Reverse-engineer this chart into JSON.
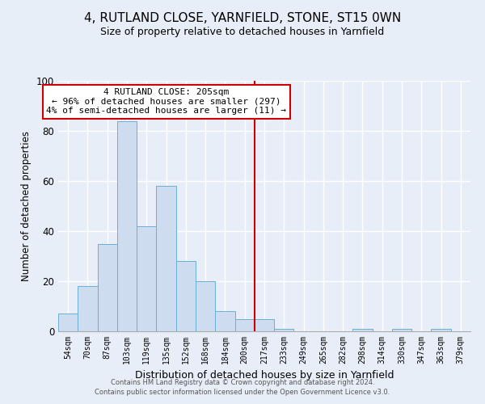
{
  "title": "4, RUTLAND CLOSE, YARNFIELD, STONE, ST15 0WN",
  "subtitle": "Size of property relative to detached houses in Yarnfield",
  "xlabel": "Distribution of detached houses by size in Yarnfield",
  "ylabel": "Number of detached properties",
  "bar_labels": [
    "54sqm",
    "70sqm",
    "87sqm",
    "103sqm",
    "119sqm",
    "135sqm",
    "152sqm",
    "168sqm",
    "184sqm",
    "200sqm",
    "217sqm",
    "233sqm",
    "249sqm",
    "265sqm",
    "282sqm",
    "298sqm",
    "314sqm",
    "330sqm",
    "347sqm",
    "363sqm",
    "379sqm"
  ],
  "bar_heights": [
    7,
    18,
    35,
    84,
    42,
    58,
    28,
    20,
    8,
    5,
    5,
    1,
    0,
    0,
    0,
    1,
    0,
    1,
    0,
    1,
    0
  ],
  "bar_color": "#cddcee",
  "bar_edge_color": "#6baed6",
  "vline_x": 9.5,
  "vline_color": "#cc0000",
  "ylim": [
    0,
    100
  ],
  "annotation_title": "4 RUTLAND CLOSE: 205sqm",
  "annotation_line1": "← 96% of detached houses are smaller (297)",
  "annotation_line2": "4% of semi-detached houses are larger (11) →",
  "annotation_box_color": "#ffffff",
  "annotation_box_edge": "#cc0000",
  "footer_line1": "Contains HM Land Registry data © Crown copyright and database right 2024.",
  "footer_line2": "Contains public sector information licensed under the Open Government Licence v3.0.",
  "background_color": "#e8eef8",
  "grid_color": "#ffffff",
  "title_fontsize": 11,
  "subtitle_fontsize": 9,
  "xlabel_fontsize": 9,
  "ylabel_fontsize": 8.5
}
